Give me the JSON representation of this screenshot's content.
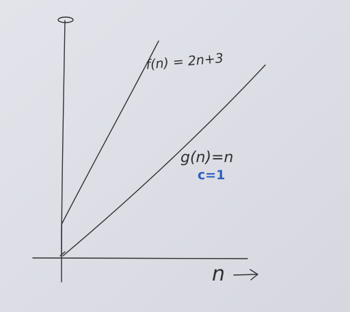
{
  "labels": {
    "f_curve": "f(n) = 2n+3",
    "g_curve": "g(n)=n",
    "constant": "c=1",
    "x_axis": "n"
  },
  "colors": {
    "board": "#dcdde5",
    "ink": "#2f3034",
    "marker_blue": "#2e5fbf"
  },
  "icons": {
    "x_axis_arrow": "right-arrow-icon"
  }
}
